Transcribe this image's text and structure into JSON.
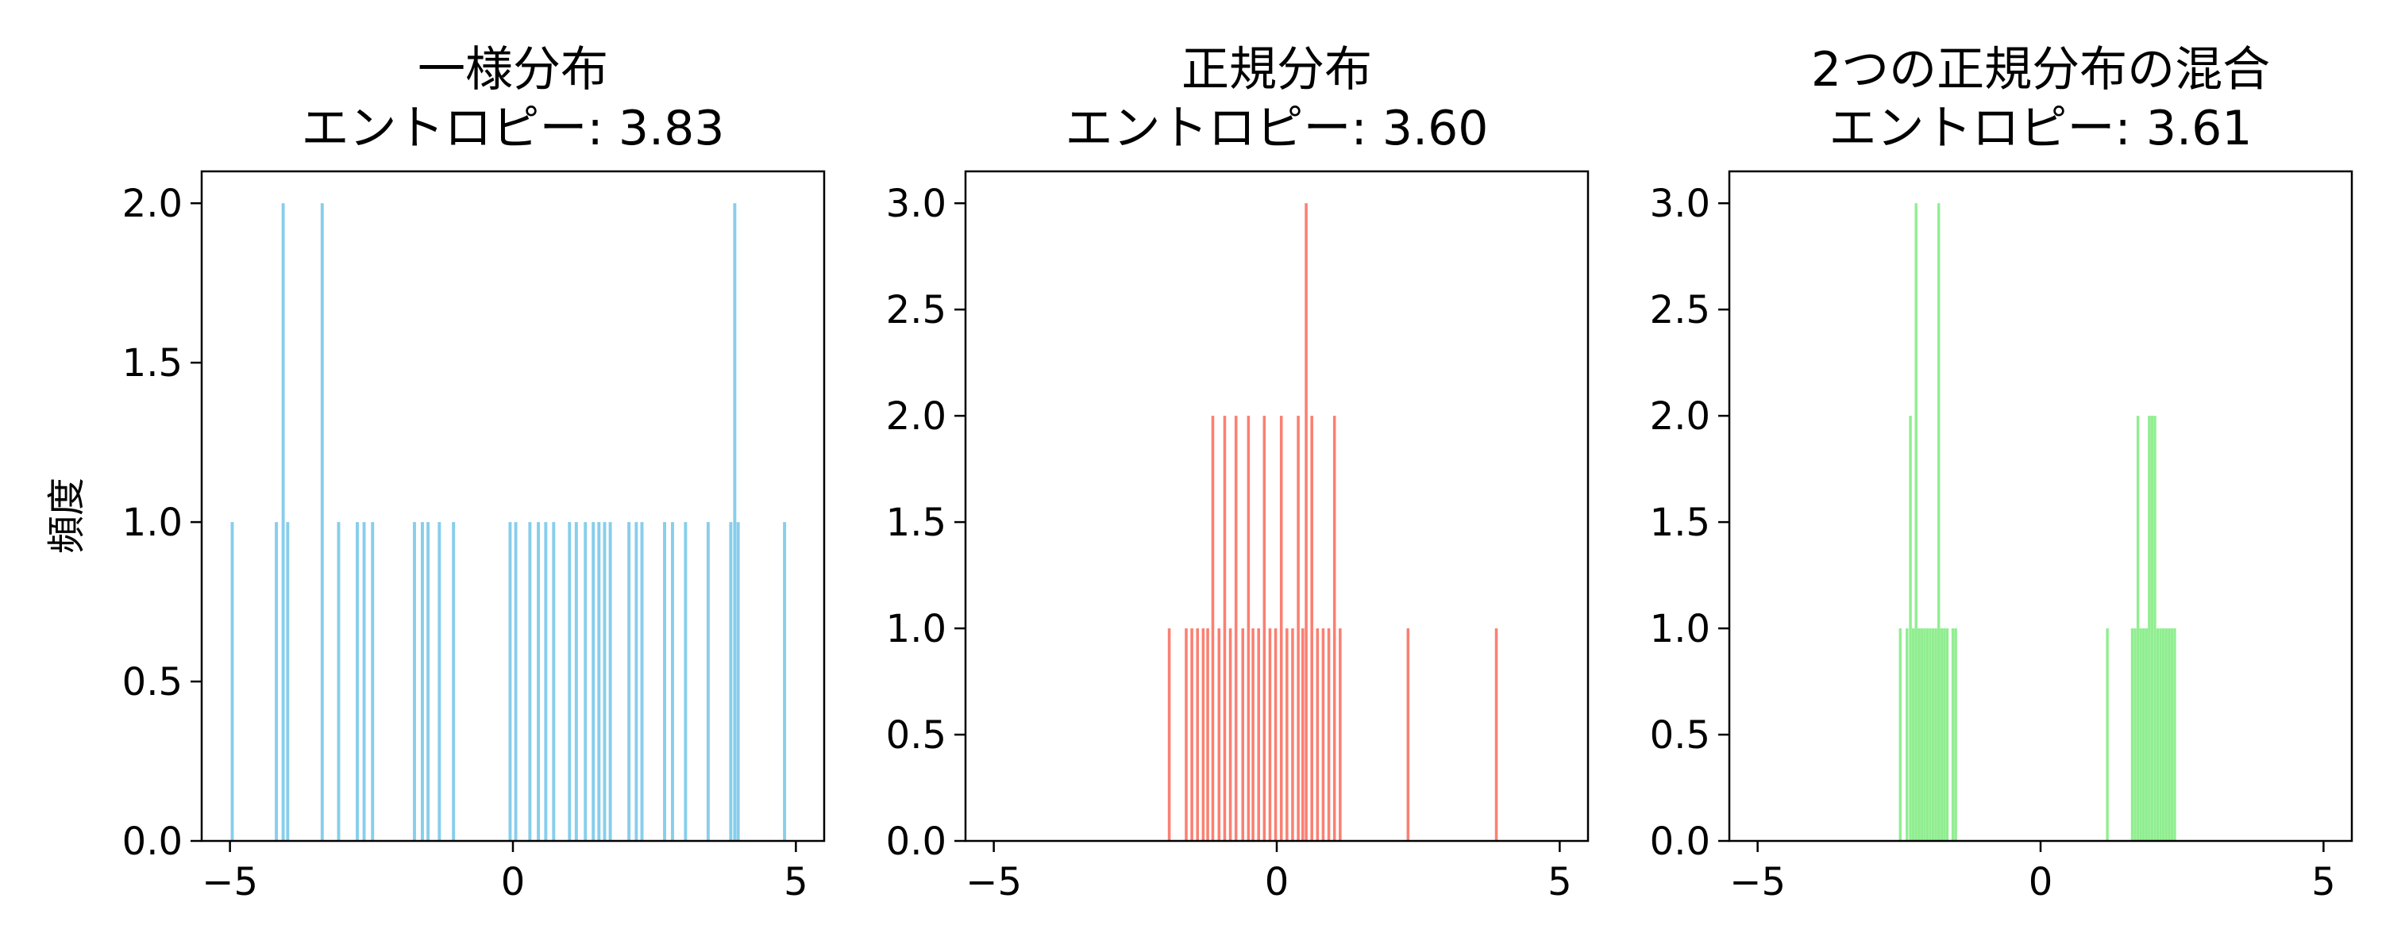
{
  "chart_data": [
    {
      "type": "bar",
      "title_line1": "一様分布",
      "title_line2": "エントロピー: 3.83",
      "ylabel": "頻度",
      "xlim": [
        -5.5,
        5.5
      ],
      "ylim": [
        0,
        2.1
      ],
      "xticks": [
        -5,
        0,
        5
      ],
      "xtick_labels": [
        "−5",
        "0",
        "5"
      ],
      "yticks": [
        0,
        0.5,
        1.0,
        1.5,
        2.0
      ],
      "ytick_labels": [
        "0.0",
        "0.5",
        "1.0",
        "1.5",
        "2.0"
      ],
      "grid": false,
      "color": "#87CEEB",
      "bin_width": 0.055,
      "bars": [
        {
          "x": -4.96,
          "y": 1
        },
        {
          "x": -4.18,
          "y": 1
        },
        {
          "x": -4.06,
          "y": 2
        },
        {
          "x": -3.98,
          "y": 1
        },
        {
          "x": -3.37,
          "y": 2
        },
        {
          "x": -3.08,
          "y": 1
        },
        {
          "x": -2.75,
          "y": 1
        },
        {
          "x": -2.63,
          "y": 1
        },
        {
          "x": -2.48,
          "y": 1
        },
        {
          "x": -1.74,
          "y": 1
        },
        {
          "x": -1.6,
          "y": 1
        },
        {
          "x": -1.5,
          "y": 1
        },
        {
          "x": -1.3,
          "y": 1
        },
        {
          "x": -1.05,
          "y": 1
        },
        {
          "x": -0.05,
          "y": 1
        },
        {
          "x": 0.05,
          "y": 1
        },
        {
          "x": 0.3,
          "y": 1
        },
        {
          "x": 0.45,
          "y": 1
        },
        {
          "x": 0.58,
          "y": 1
        },
        {
          "x": 0.72,
          "y": 1
        },
        {
          "x": 1.0,
          "y": 1
        },
        {
          "x": 1.12,
          "y": 1
        },
        {
          "x": 1.28,
          "y": 1
        },
        {
          "x": 1.42,
          "y": 1
        },
        {
          "x": 1.52,
          "y": 1
        },
        {
          "x": 1.62,
          "y": 1
        },
        {
          "x": 1.72,
          "y": 1
        },
        {
          "x": 2.05,
          "y": 1
        },
        {
          "x": 2.18,
          "y": 1
        },
        {
          "x": 2.28,
          "y": 1
        },
        {
          "x": 2.68,
          "y": 1
        },
        {
          "x": 2.82,
          "y": 1
        },
        {
          "x": 3.05,
          "y": 1
        },
        {
          "x": 3.45,
          "y": 1
        },
        {
          "x": 3.85,
          "y": 1
        },
        {
          "x": 3.92,
          "y": 2
        },
        {
          "x": 3.98,
          "y": 1
        },
        {
          "x": 4.8,
          "y": 1
        }
      ]
    },
    {
      "type": "bar",
      "title_line1": "正規分布",
      "title_line2": "エントロピー: 3.60",
      "xlim": [
        -5.5,
        5.5
      ],
      "ylim": [
        0,
        3.15
      ],
      "xticks": [
        -5,
        0,
        5
      ],
      "xtick_labels": [
        "−5",
        "0",
        "5"
      ],
      "yticks": [
        0,
        0.5,
        1.0,
        1.5,
        2.0,
        2.5,
        3.0
      ],
      "ytick_labels": [
        "0.0",
        "0.5",
        "1.0",
        "1.5",
        "2.0",
        "2.5",
        "3.0"
      ],
      "grid": false,
      "color": "#FA8072",
      "bin_width": 0.05,
      "bars": [
        {
          "x": -1.9,
          "y": 1
        },
        {
          "x": -1.6,
          "y": 1
        },
        {
          "x": -1.5,
          "y": 1
        },
        {
          "x": -1.4,
          "y": 1
        },
        {
          "x": -1.3,
          "y": 1
        },
        {
          "x": -1.22,
          "y": 1
        },
        {
          "x": -1.13,
          "y": 2
        },
        {
          "x": -1.02,
          "y": 1
        },
        {
          "x": -0.92,
          "y": 2
        },
        {
          "x": -0.82,
          "y": 1
        },
        {
          "x": -0.72,
          "y": 2
        },
        {
          "x": -0.6,
          "y": 1
        },
        {
          "x": -0.5,
          "y": 2
        },
        {
          "x": -0.42,
          "y": 1
        },
        {
          "x": -0.32,
          "y": 1
        },
        {
          "x": -0.22,
          "y": 2
        },
        {
          "x": -0.12,
          "y": 1
        },
        {
          "x": -0.02,
          "y": 1
        },
        {
          "x": 0.08,
          "y": 2
        },
        {
          "x": 0.18,
          "y": 1
        },
        {
          "x": 0.28,
          "y": 1
        },
        {
          "x": 0.38,
          "y": 2
        },
        {
          "x": 0.46,
          "y": 1
        },
        {
          "x": 0.52,
          "y": 3
        },
        {
          "x": 0.62,
          "y": 2
        },
        {
          "x": 0.72,
          "y": 1
        },
        {
          "x": 0.82,
          "y": 1
        },
        {
          "x": 0.92,
          "y": 1
        },
        {
          "x": 1.02,
          "y": 2
        },
        {
          "x": 1.12,
          "y": 1
        },
        {
          "x": 2.32,
          "y": 1
        },
        {
          "x": 3.88,
          "y": 1
        }
      ]
    },
    {
      "type": "bar",
      "title_line1": "2つの正規分布の混合",
      "title_line2": "エントロピー: 3.61",
      "xlim": [
        -5.5,
        5.5
      ],
      "ylim": [
        0,
        3.15
      ],
      "xticks": [
        -5,
        0,
        5
      ],
      "xtick_labels": [
        "−5",
        "0",
        "5"
      ],
      "yticks": [
        0,
        0.5,
        1.0,
        1.5,
        2.0,
        2.5,
        3.0
      ],
      "ytick_labels": [
        "0.0",
        "0.5",
        "1.0",
        "1.5",
        "2.0",
        "2.5",
        "3.0"
      ],
      "grid": false,
      "color": "#90EE90",
      "bin_width": 0.048,
      "bars": [
        {
          "x": -2.48,
          "y": 1
        },
        {
          "x": -2.36,
          "y": 1
        },
        {
          "x": -2.3,
          "y": 2
        },
        {
          "x": -2.25,
          "y": 1
        },
        {
          "x": -2.2,
          "y": 3
        },
        {
          "x": -2.15,
          "y": 1
        },
        {
          "x": -2.1,
          "y": 1
        },
        {
          "x": -2.05,
          "y": 1
        },
        {
          "x": -2.0,
          "y": 1
        },
        {
          "x": -1.95,
          "y": 1
        },
        {
          "x": -1.9,
          "y": 1
        },
        {
          "x": -1.85,
          "y": 1
        },
        {
          "x": -1.8,
          "y": 3
        },
        {
          "x": -1.75,
          "y": 1
        },
        {
          "x": -1.7,
          "y": 1
        },
        {
          "x": -1.65,
          "y": 1
        },
        {
          "x": -1.55,
          "y": 1
        },
        {
          "x": -1.5,
          "y": 1
        },
        {
          "x": 1.18,
          "y": 1
        },
        {
          "x": 1.62,
          "y": 1
        },
        {
          "x": 1.67,
          "y": 1
        },
        {
          "x": 1.72,
          "y": 2
        },
        {
          "x": 1.77,
          "y": 1
        },
        {
          "x": 1.82,
          "y": 1
        },
        {
          "x": 1.87,
          "y": 1
        },
        {
          "x": 1.92,
          "y": 2
        },
        {
          "x": 1.97,
          "y": 2
        },
        {
          "x": 2.02,
          "y": 2
        },
        {
          "x": 2.07,
          "y": 1
        },
        {
          "x": 2.12,
          "y": 1
        },
        {
          "x": 2.17,
          "y": 1
        },
        {
          "x": 2.22,
          "y": 1
        },
        {
          "x": 2.27,
          "y": 1
        },
        {
          "x": 2.32,
          "y": 1
        },
        {
          "x": 2.37,
          "y": 1
        }
      ]
    }
  ]
}
